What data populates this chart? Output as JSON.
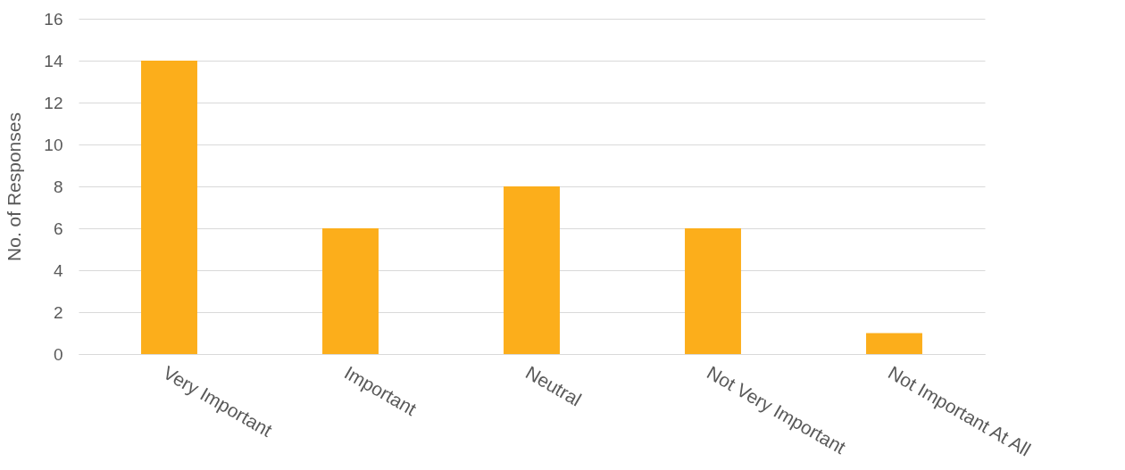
{
  "chart_data": {
    "type": "bar",
    "ylabel": "No. of Responses",
    "categories": [
      "Very Important",
      "Important",
      "Neutral",
      "Not Very Important",
      "Not Important At All"
    ],
    "values": [
      14,
      6,
      8,
      6,
      1
    ],
    "color": "#fcae1b",
    "ylim": [
      0,
      16
    ],
    "yticks": [
      0,
      2,
      4,
      6,
      8,
      10,
      12,
      14,
      16
    ],
    "grid": "y"
  }
}
